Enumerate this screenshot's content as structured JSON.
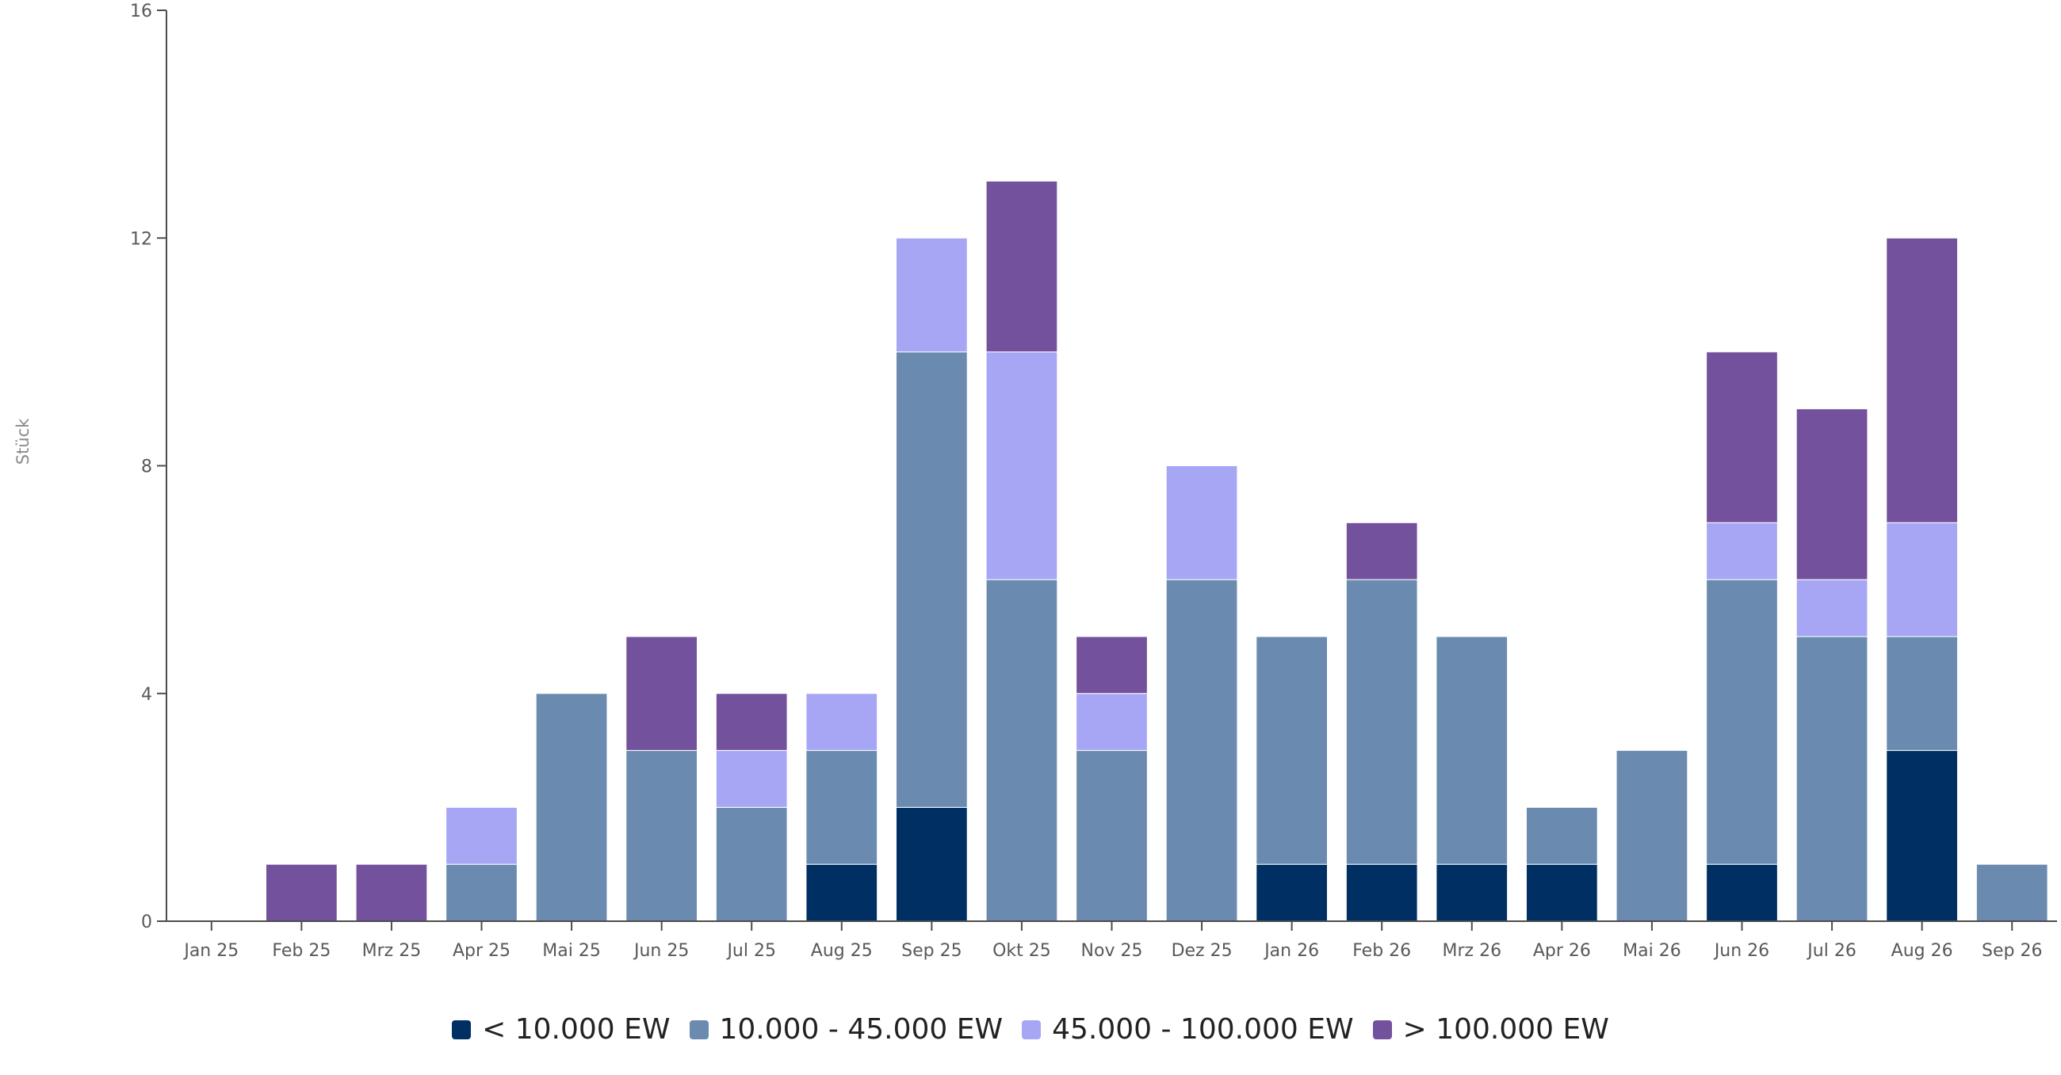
{
  "chart_data": {
    "type": "bar",
    "stacked": true,
    "ylabel": "Stück",
    "ylim": [
      0,
      16
    ],
    "yticks": [
      0,
      4,
      8,
      12,
      16
    ],
    "categories": [
      "Jan 25",
      "Feb 25",
      "Mrz 25",
      "Apr 25",
      "Mai 25",
      "Jun 25",
      "Jul 25",
      "Aug 25",
      "Sep 25",
      "Okt 25",
      "Nov 25",
      "Dez 25",
      "Jan 26",
      "Feb 26",
      "Mrz 26",
      "Apr 26",
      "Mai 26",
      "Jun 26",
      "Jul 26",
      "Aug 26",
      "Sep 26"
    ],
    "series": [
      {
        "name": "< 10.000 EW",
        "color": "#002f63",
        "values": [
          0,
          0,
          0,
          0,
          0,
          0,
          0,
          1,
          2,
          0,
          0,
          0,
          1,
          1,
          1,
          1,
          0,
          1,
          0,
          3,
          0
        ]
      },
      {
        "name": "10.000 - 45.000 EW",
        "color": "#6a8baf",
        "values": [
          0,
          0,
          0,
          1,
          4,
          3,
          2,
          2,
          8,
          6,
          3,
          6,
          4,
          5,
          4,
          1,
          3,
          5,
          5,
          2,
          1
        ]
      },
      {
        "name": "45.000 - 100.000 EW",
        "color": "#a6a6f5",
        "values": [
          0,
          0,
          0,
          1,
          0,
          0,
          1,
          1,
          2,
          4,
          1,
          2,
          0,
          0,
          0,
          0,
          0,
          1,
          1,
          2,
          0
        ]
      },
      {
        "name": "> 100.000 EW",
        "color": "#74519c",
        "values": [
          0,
          1,
          1,
          0,
          0,
          2,
          1,
          0,
          0,
          3,
          1,
          0,
          0,
          1,
          0,
          0,
          0,
          3,
          3,
          5,
          0
        ]
      }
    ],
    "legend_position": "bottom",
    "grid": false
  }
}
